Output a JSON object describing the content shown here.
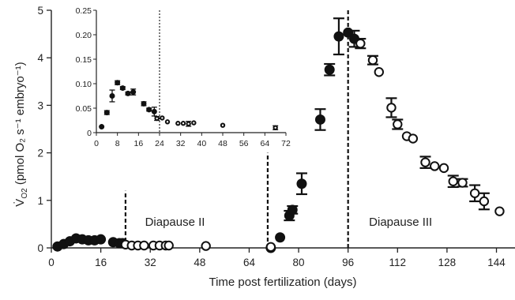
{
  "chart_data": [
    {
      "type": "scatter",
      "role": "main",
      "xlabel": "Time post fertilization (days)",
      "ylabel": {
        "main": "V̇",
        "sub": "O2",
        "rest": " (pmol O₂ s⁻¹ embryo⁻¹)"
      },
      "xlim": [
        0,
        150
      ],
      "ylim": [
        0,
        5
      ],
      "xticks": [
        0,
        16,
        32,
        48,
        64,
        80,
        96,
        112,
        128,
        144
      ],
      "yticks": [
        0,
        1,
        2,
        3,
        4,
        5
      ],
      "annotations": [
        {
          "id": "diapause-2",
          "text": "Diapause II",
          "x": 40,
          "y": 0.55
        },
        {
          "id": "diapause-3",
          "text": "Diapause III",
          "x": 113,
          "y": 0.55
        }
      ],
      "vlines": [
        {
          "id": "vline-diapause-2",
          "x": 24,
          "y0": 0,
          "y1": 1.2,
          "style": "dashed"
        },
        {
          "id": "vline-diapause-2-end",
          "x": 70,
          "y0": 0,
          "y1": 2.0,
          "style": "dashed"
        },
        {
          "id": "vline-diapause-3",
          "x": 96,
          "y0": 0,
          "y1": 5.05,
          "style": "dashed"
        }
      ],
      "series": [
        {
          "marker": "filled",
          "points": [
            {
              "x": 2,
              "y": 0.03
            },
            {
              "x": 4,
              "y": 0.08
            },
            {
              "x": 6,
              "y": 0.14
            },
            {
              "x": 8,
              "y": 0.2
            },
            {
              "x": 10,
              "y": 0.18
            },
            {
              "x": 12,
              "y": 0.16
            },
            {
              "x": 14,
              "y": 0.16
            },
            {
              "x": 16,
              "y": 0.18
            },
            {
              "x": 20,
              "y": 0.12
            },
            {
              "x": 22,
              "y": 0.1
            },
            {
              "x": 23,
              "y": 0.1
            },
            {
              "x": 71,
              "y": 0.0
            },
            {
              "x": 74,
              "y": 0.22
            },
            {
              "x": 77,
              "y": 0.68,
              "err": 0.1
            },
            {
              "x": 78,
              "y": 0.8,
              "err": 0.08
            },
            {
              "x": 81,
              "y": 1.35,
              "err": 0.22
            },
            {
              "x": 87,
              "y": 2.7,
              "err": 0.22
            },
            {
              "x": 90,
              "y": 3.75,
              "err": 0.12
            },
            {
              "x": 93,
              "y": 4.45,
              "err": 0.38
            },
            {
              "x": 96,
              "y": 4.53
            },
            {
              "x": 98,
              "y": 4.4,
              "err": 0.17
            }
          ]
        },
        {
          "marker": "open",
          "points": [
            {
              "x": 24,
              "y": 0.07
            },
            {
              "x": 26,
              "y": 0.05
            },
            {
              "x": 28,
              "y": 0.05
            },
            {
              "x": 30,
              "y": 0.05
            },
            {
              "x": 33,
              "y": 0.05
            },
            {
              "x": 35,
              "y": 0.05
            },
            {
              "x": 37,
              "y": 0.05
            },
            {
              "x": 38,
              "y": 0.05
            },
            {
              "x": 50,
              "y": 0.04
            },
            {
              "x": 71,
              "y": 0.02
            },
            {
              "x": 100,
              "y": 4.3,
              "err": 0.1
            },
            {
              "x": 104,
              "y": 3.95,
              "err": 0.09
            },
            {
              "x": 106,
              "y": 3.7
            },
            {
              "x": 110,
              "y": 2.95,
              "err": 0.2
            },
            {
              "x": 112,
              "y": 2.6,
              "err": 0.1
            },
            {
              "x": 115,
              "y": 2.35
            },
            {
              "x": 117,
              "y": 2.3
            },
            {
              "x": 121,
              "y": 1.8,
              "err": 0.12
            },
            {
              "x": 124,
              "y": 1.72
            },
            {
              "x": 127,
              "y": 1.68
            },
            {
              "x": 130,
              "y": 1.4,
              "err": 0.12
            },
            {
              "x": 133,
              "y": 1.37,
              "err": 0.08
            },
            {
              "x": 137,
              "y": 1.15,
              "err": 0.17
            },
            {
              "x": 140,
              "y": 0.98,
              "err": 0.17
            },
            {
              "x": 145,
              "y": 0.77
            }
          ]
        }
      ]
    },
    {
      "type": "scatter",
      "role": "inset",
      "xlim": [
        0,
        72
      ],
      "ylim": [
        0,
        0.25
      ],
      "xticks": [
        0,
        8,
        16,
        24,
        32,
        40,
        48,
        56,
        64,
        72
      ],
      "yticks": [
        0,
        0.05,
        0.1,
        0.15,
        0.2,
        0.25
      ],
      "ytick_labels": [
        "0",
        "0.05",
        "0.10",
        "0.15",
        "0.20",
        "0.25"
      ],
      "vlines": [
        {
          "id": "inset-vline-24",
          "x": 24,
          "style": "dotted"
        }
      ],
      "series": [
        {
          "marker": "filled",
          "points": [
            {
              "x": 2,
              "y": 0.012
            },
            {
              "x": 4,
              "y": 0.041,
              "err": 0.004
            },
            {
              "x": 6,
              "y": 0.075,
              "err": 0.012
            },
            {
              "x": 8,
              "y": 0.102,
              "err": 0.004
            },
            {
              "x": 10,
              "y": 0.091,
              "err": 0.003
            },
            {
              "x": 12,
              "y": 0.08,
              "err": 0.003
            },
            {
              "x": 14,
              "y": 0.083,
              "err": 0.006
            },
            {
              "x": 18,
              "y": 0.059,
              "err": 0.004
            },
            {
              "x": 20,
              "y": 0.047,
              "err": 0.003
            },
            {
              "x": 22,
              "y": 0.043,
              "err": 0.009
            }
          ]
        },
        {
          "marker": "open",
          "points": [
            {
              "x": 23,
              "y": 0.029,
              "err": 0.004
            },
            {
              "x": 25,
              "y": 0.03
            },
            {
              "x": 27,
              "y": 0.022
            },
            {
              "x": 31,
              "y": 0.019
            },
            {
              "x": 33,
              "y": 0.019
            },
            {
              "x": 35,
              "y": 0.018,
              "err": 0.005
            },
            {
              "x": 37,
              "y": 0.02
            },
            {
              "x": 48,
              "y": 0.015
            },
            {
              "x": 68,
              "y": 0.01,
              "err": 0.004
            }
          ]
        }
      ]
    }
  ]
}
